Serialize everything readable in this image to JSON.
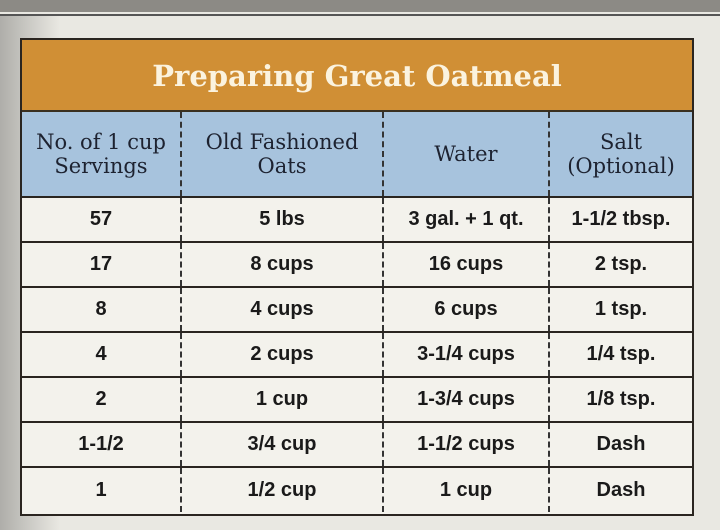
{
  "title": "Preparing Great Oatmeal",
  "headers": [
    "No. of 1 cup Servings",
    "Old Fashioned Oats",
    "Water",
    "Salt (Optional)"
  ],
  "rows": [
    [
      "57",
      "5 lbs",
      "3 gal. + 1 qt.",
      "1-1/2 tbsp."
    ],
    [
      "17",
      "8 cups",
      "16 cups",
      "2 tsp."
    ],
    [
      "8",
      "4 cups",
      "6 cups",
      "1 tsp."
    ],
    [
      "4",
      "2 cups",
      "3-1/4 cups",
      "1/4 tsp."
    ],
    [
      "2",
      "1 cup",
      "1-3/4 cups",
      "1/8 tsp."
    ],
    [
      "1-1/2",
      "3/4 cup",
      "1-1/2 cups",
      "Dash"
    ],
    [
      "1",
      "1/2 cup",
      "1 cup",
      "Dash"
    ]
  ],
  "colors": {
    "title_band": "#d08f35",
    "header_band": "#a7c3dd"
  }
}
